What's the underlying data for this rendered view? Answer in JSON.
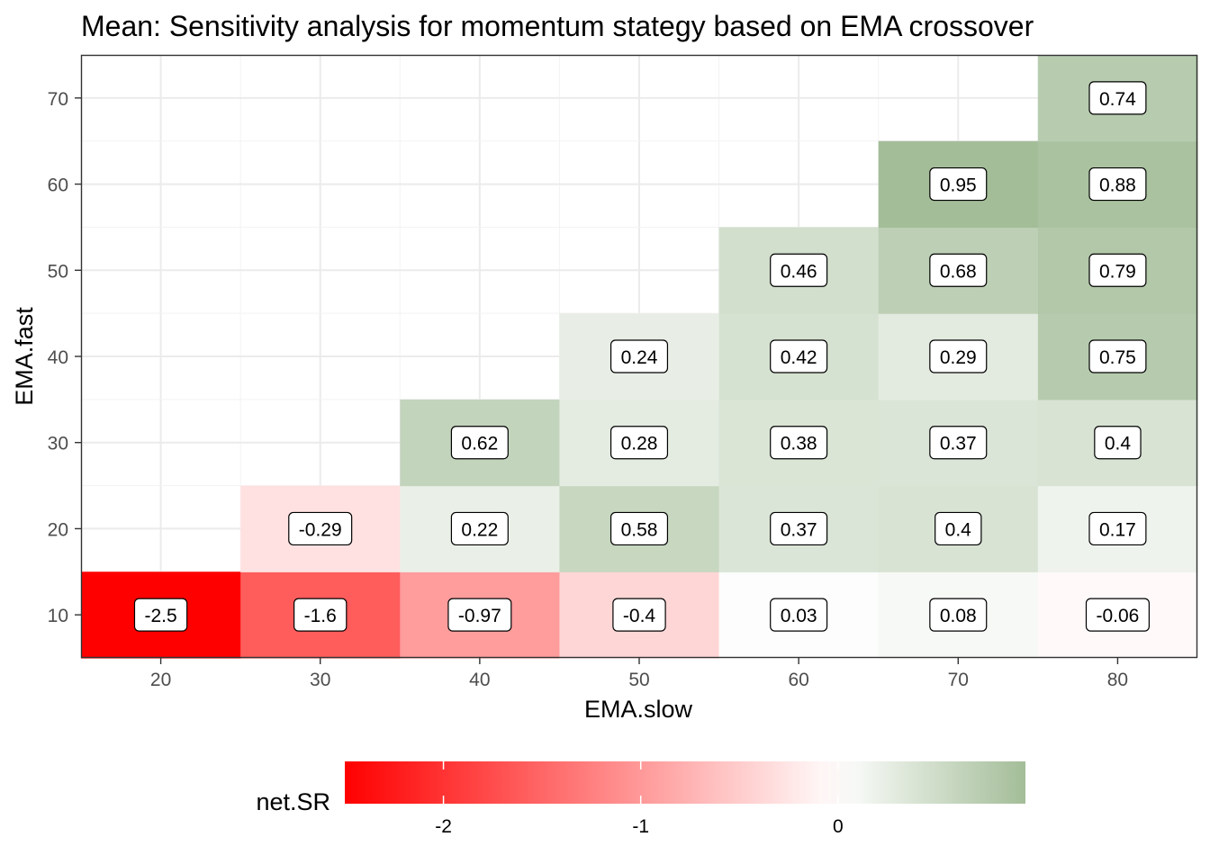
{
  "chart_data": {
    "type": "heatmap",
    "title": "Mean: Sensitivity analysis for momentum stategy based on EMA crossover",
    "xlabel": "EMA.slow",
    "ylabel": "EMA.fast",
    "x_ticks": [
      "20",
      "30",
      "40",
      "50",
      "60",
      "70",
      "80"
    ],
    "y_ticks": [
      "10",
      "20",
      "30",
      "40",
      "50",
      "60",
      "70"
    ],
    "xlim": [
      15,
      85
    ],
    "ylim": [
      5,
      75
    ],
    "grid": true,
    "legend": {
      "title": "net.SR",
      "placement": "bottom",
      "ticks": [
        "-2",
        "-1",
        "0"
      ],
      "range": [
        -2.5,
        0.95
      ],
      "low_color": "#ff0000",
      "mid_color": "#ffffff",
      "high_color": "#a3bd98"
    },
    "cells": [
      {
        "x": 20,
        "y": 10,
        "value": -2.5,
        "label": "-2.5"
      },
      {
        "x": 30,
        "y": 10,
        "value": -1.6,
        "label": "-1.6"
      },
      {
        "x": 40,
        "y": 10,
        "value": -0.97,
        "label": "-0.97"
      },
      {
        "x": 50,
        "y": 10,
        "value": -0.4,
        "label": "-0.4"
      },
      {
        "x": 60,
        "y": 10,
        "value": 0.03,
        "label": "0.03"
      },
      {
        "x": 70,
        "y": 10,
        "value": 0.08,
        "label": "0.08"
      },
      {
        "x": 80,
        "y": 10,
        "value": -0.06,
        "label": "-0.06"
      },
      {
        "x": 30,
        "y": 20,
        "value": -0.29,
        "label": "-0.29"
      },
      {
        "x": 40,
        "y": 20,
        "value": 0.22,
        "label": "0.22"
      },
      {
        "x": 50,
        "y": 20,
        "value": 0.58,
        "label": "0.58"
      },
      {
        "x": 60,
        "y": 20,
        "value": 0.37,
        "label": "0.37"
      },
      {
        "x": 70,
        "y": 20,
        "value": 0.4,
        "label": "0.4"
      },
      {
        "x": 80,
        "y": 20,
        "value": 0.17,
        "label": "0.17"
      },
      {
        "x": 40,
        "y": 30,
        "value": 0.62,
        "label": "0.62"
      },
      {
        "x": 50,
        "y": 30,
        "value": 0.28,
        "label": "0.28"
      },
      {
        "x": 60,
        "y": 30,
        "value": 0.38,
        "label": "0.38"
      },
      {
        "x": 70,
        "y": 30,
        "value": 0.37,
        "label": "0.37"
      },
      {
        "x": 80,
        "y": 30,
        "value": 0.4,
        "label": "0.4"
      },
      {
        "x": 50,
        "y": 40,
        "value": 0.24,
        "label": "0.24"
      },
      {
        "x": 60,
        "y": 40,
        "value": 0.42,
        "label": "0.42"
      },
      {
        "x": 70,
        "y": 40,
        "value": 0.29,
        "label": "0.29"
      },
      {
        "x": 80,
        "y": 40,
        "value": 0.75,
        "label": "0.75"
      },
      {
        "x": 60,
        "y": 50,
        "value": 0.46,
        "label": "0.46"
      },
      {
        "x": 70,
        "y": 50,
        "value": 0.68,
        "label": "0.68"
      },
      {
        "x": 80,
        "y": 50,
        "value": 0.79,
        "label": "0.79"
      },
      {
        "x": 70,
        "y": 60,
        "value": 0.95,
        "label": "0.95"
      },
      {
        "x": 80,
        "y": 60,
        "value": 0.88,
        "label": "0.88"
      },
      {
        "x": 80,
        "y": 70,
        "value": 0.74,
        "label": "0.74"
      }
    ]
  }
}
